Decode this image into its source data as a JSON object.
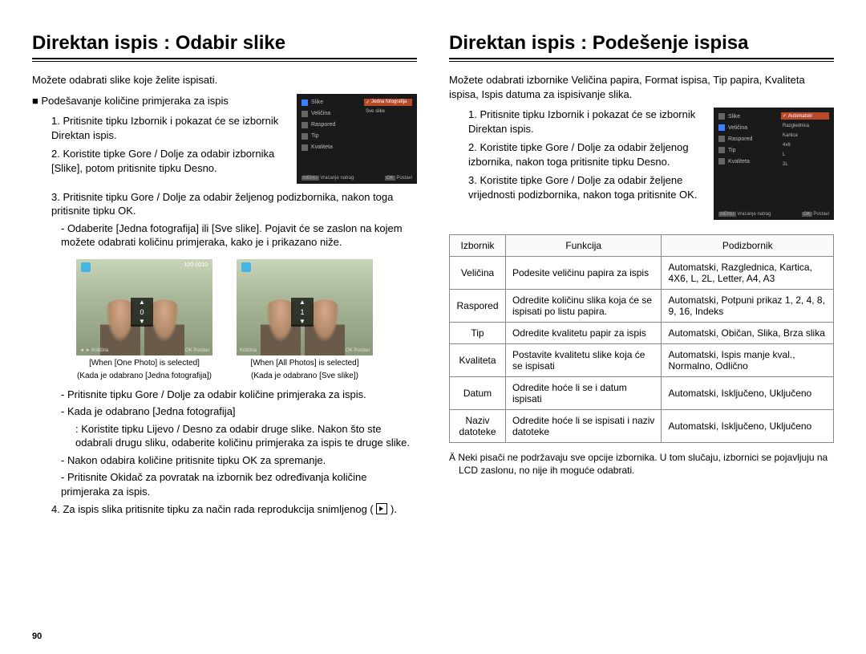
{
  "page_number": "90",
  "left": {
    "title": "Direktan ispis : Odabir slike",
    "intro": "Možete odabrati slike koje želite ispisati.",
    "subhead": "Podešavanje količine primjeraka za ispis",
    "step1": "Pritisnite tipku Izbornik i pokazat će se izbornik Direktan ispis.",
    "step2": "Koristite tipke Gore / Dolje za odabir izbornika [Slike], potom pritisnite tipku Desno.",
    "step3": "Pritisnite tipku Gore / Dolje za odabir željenog podizbornika, nakon toga pritisnite tipku OK.",
    "step3_a": "- Odaberite [Jedna fotografija] ili [Sve slike]. Pojavit će se zaslon na kojem možete odabrati količinu primjeraka, kako je i prikazano niže.",
    "thumb1_caption1": "[When [One Photo] is selected]",
    "thumb1_caption2": "(Kada je odabrano [Jedna fotografija])",
    "thumb2_caption1": "[When [All Photos] is selected]",
    "thumb2_caption2": "(Kada je odabrano [Sve slike])",
    "after_a": "- Pritisnite tipku Gore / Dolje za odabir količine primjeraka za ispis.",
    "after_b": "- Kada je odabrano [Jedna fotografija]",
    "after_b2": ": Koristite tipku Lijevo / Desno za odabir druge slike. Nakon što ste odabrali drugu sliku, odaberite količinu primjeraka za ispis te druge slike.",
    "after_c": "- Nakon odabira količine pritisnite tipku OK za spremanje.",
    "after_d": "- Pritisnite Okidač za povratak na izbornik bez određivanja količine primjeraka za ispis.",
    "step4": "Za ispis slika pritisnite tipku za način rada reprodukcija snimljenog (",
    "step4_end": ").",
    "screenshot": {
      "items": [
        "Slike",
        "Veličina",
        "Raspored",
        "Tip",
        "Kvaliteta"
      ],
      "right_items": [
        "Jedna fotografija",
        "Sve slike"
      ],
      "bottom_left": "Vraćanje natrag",
      "bottom_right": "Postavi",
      "thumb_top": "100-0010",
      "thumb_bottom_l": "Količina",
      "thumb_bottom_r": "Postavi",
      "qty0": "0",
      "qty1": "1"
    }
  },
  "right": {
    "title": "Direktan ispis : Podešenje ispisa",
    "intro": "Možete odabrati izbornike Veličina papira, Format ispisa, Tip papira, Kvaliteta ispisa, Ispis datuma za ispisivanje slika.",
    "step1": "Pritisnite tipku Izbornik i pokazat će se izbornik Direktan ispis.",
    "step2": "Koristite tipke Gore / Dolje za odabir željenog izbornika, nakon toga pritisnite tipku Desno.",
    "step3": "Koristite tipke Gore / Dolje za odabir željene vrijednosti podizbornika, nakon toga pritisnite OK.",
    "screenshot": {
      "items": [
        "Slike",
        "Veličina",
        "Raspored",
        "Tip",
        "Kvaliteta"
      ],
      "right_items": [
        "Automatski",
        "Razglednica",
        "Kartica",
        "4x6",
        "L",
        "2L"
      ],
      "bottom_left": "Vraćanje natrag",
      "bottom_right": "Postavi"
    },
    "table": {
      "headers": [
        "Izbornik",
        "Funkcija",
        "Podizbornik"
      ],
      "rows": [
        [
          "Veličina",
          "Podesite veličinu papira za ispis",
          "Automatski, Razglednica, Kartica, 4X6, L, 2L, Letter, A4, A3"
        ],
        [
          "Raspored",
          "Odredite količinu slika koja će se ispisati po listu papira.",
          "Automatski, Potpuni prikaz 1, 2, 4, 8, 9, 16, Indeks"
        ],
        [
          "Tip",
          "Odredite kvalitetu papir za ispis",
          "Automatski, Običan, Slika, Brza slika"
        ],
        [
          "Kvaliteta",
          "Postavite kvalitetu slike koja će se ispisati",
          "Automatski, Ispis manje kval., Normalno, Odlično"
        ],
        [
          "Datum",
          "Odredite hoće li se i datum ispisati",
          "Automatski, Isključeno, Uključeno"
        ],
        [
          "Naziv datoteke",
          "Odredite hoće li se ispisati i naziv datoteke",
          "Automatski, Isključeno, Uključeno"
        ]
      ]
    },
    "footnote": "Ä Neki pisači ne podržavaju sve opcije izbornika. U tom slučaju, izbornici se pojavljuju na LCD zaslonu, no nije ih moguće odabrati."
  }
}
